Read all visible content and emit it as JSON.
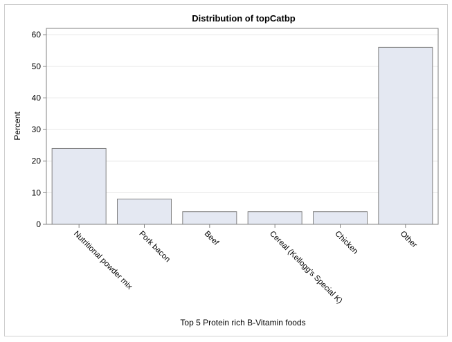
{
  "chart_data": {
    "type": "bar",
    "title": "Distribution of topCatbp",
    "xlabel": "Top 5 Protein rich B-Vitamin foods",
    "ylabel": "Percent",
    "categories": [
      "Nutritional powder mix",
      "Pork bacon",
      "Beef",
      "Cereal (Kellogg's Special K)",
      "Chicken",
      "Other"
    ],
    "values": [
      24,
      8,
      4,
      4,
      4,
      56
    ],
    "ylim": [
      0,
      62
    ],
    "yticks": [
      0,
      10,
      20,
      30,
      40,
      50,
      60
    ],
    "grid": true,
    "colors": {
      "bar_fill": "#e4e8f2",
      "bar_stroke": "#808080",
      "grid": "#e6e6e6",
      "axis": "#808080"
    }
  }
}
